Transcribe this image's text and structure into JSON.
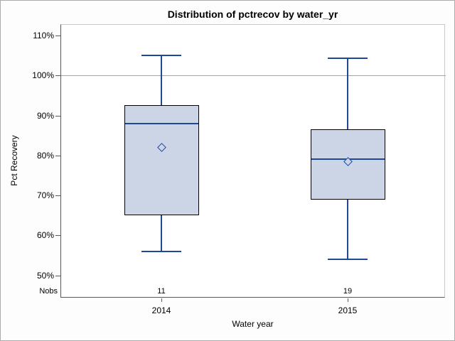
{
  "chart_data": {
    "type": "box",
    "title": "Distribution of pctrecov by water_yr",
    "xlabel": "Water year",
    "ylabel": "Pct Recovery",
    "stats_row_label": "Nobs",
    "categories": [
      "2014",
      "2015"
    ],
    "yticks": [
      110,
      100,
      90,
      80,
      70,
      60,
      50
    ],
    "ytick_suffix": "%",
    "ylim": [
      48,
      112
    ],
    "grid": false,
    "reference_line": 100,
    "series": [
      {
        "category": "2014",
        "nobs": 11,
        "whisker_low": 56,
        "q1": 65,
        "median": 88,
        "q3": 92.5,
        "whisker_high": 105,
        "mean": 82
      },
      {
        "category": "2015",
        "nobs": 19,
        "whisker_low": 54,
        "q1": 69,
        "median": 79,
        "q3": 86.5,
        "whisker_high": 104.3,
        "mean": 78.5
      }
    ],
    "colors": {
      "box_fill": "#ccd5e5",
      "box_border": "#000000",
      "line": "#1f4899",
      "reference_line": "#a3a3a3",
      "axis": "#59595b",
      "frame": "#c9c9c9",
      "text": "#000000"
    }
  }
}
